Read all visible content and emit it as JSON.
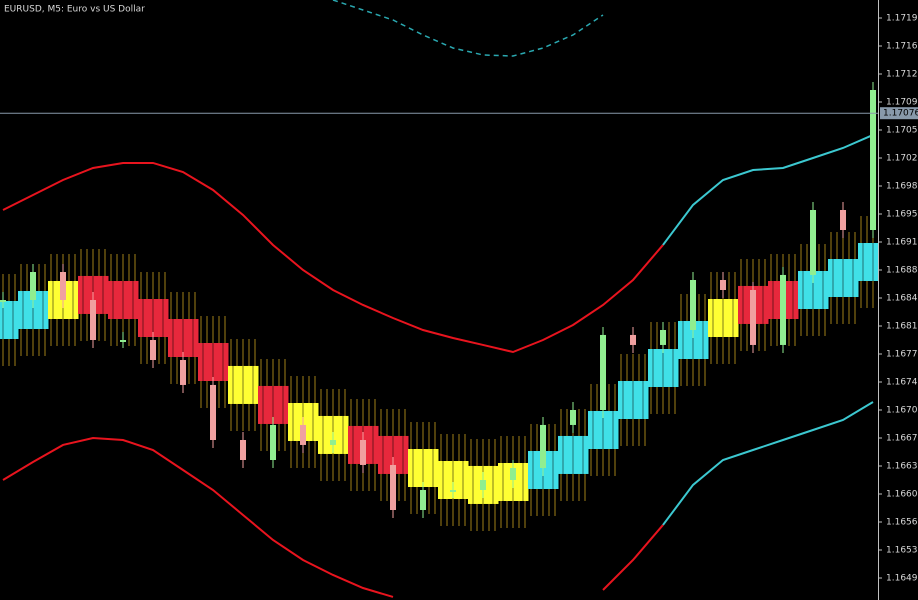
{
  "chart_data": {
    "type": "line",
    "title": "EURUSD, M5:  Euro vs US Dollar",
    "categories": [
      null,
      null,
      null,
      null,
      null,
      null,
      null,
      null,
      null,
      null,
      null,
      null,
      null,
      null,
      null,
      null,
      null,
      null,
      null,
      null,
      null,
      null,
      null,
      null,
      null,
      null,
      null,
      null,
      null,
      null
    ],
    "ylim": [
      1.164675,
      1.172175
    ],
    "yticks": [
      {
        "value": 1.17195,
        "label": "1.17195"
      },
      {
        "value": 1.1716,
        "label": "1.17160"
      },
      {
        "value": 1.17125,
        "label": "1.17125"
      },
      {
        "value": 1.1709,
        "label": "1.17090"
      },
      {
        "value": 1.17055,
        "label": "1.17055"
      },
      {
        "value": 1.1702,
        "label": "1.17020"
      },
      {
        "value": 1.16985,
        "label": "1.16985"
      },
      {
        "value": 1.1695,
        "label": "1.16950"
      },
      {
        "value": 1.16915,
        "label": "1.16915"
      },
      {
        "value": 1.1688,
        "label": "1.16880"
      },
      {
        "value": 1.16845,
        "label": "1.16845"
      },
      {
        "value": 1.1681,
        "label": "1.16810"
      },
      {
        "value": 1.16775,
        "label": "1.16775"
      },
      {
        "value": 1.1674,
        "label": "1.16740"
      },
      {
        "value": 1.16705,
        "label": "1.16705"
      },
      {
        "value": 1.1667,
        "label": "1.16670"
      },
      {
        "value": 1.16635,
        "label": "1.16635"
      },
      {
        "value": 1.166,
        "label": "1.16600"
      },
      {
        "value": 1.16565,
        "label": "1.16565"
      },
      {
        "value": 1.1653,
        "label": "1.16530"
      },
      {
        "value": 1.16495,
        "label": "1.16495"
      }
    ],
    "price_line": {
      "value": 1.17076,
      "label": "1.17076",
      "color": "#8899aa"
    },
    "series": [
      {
        "style": "line",
        "color": "#e8141e",
        "values": [
          1.16955,
          1.169738,
          1.169925,
          1.170075,
          1.170138,
          1.170138,
          1.170025,
          1.1698,
          1.169488,
          1.169113,
          1.1688,
          1.16855,
          1.168363,
          1.1682,
          1.16805,
          1.16795,
          1.167863,
          1.167775,
          1.167925,
          1.168113,
          1.168363,
          1.168675,
          1.169113,
          null,
          null,
          null,
          null,
          null,
          null,
          null
        ]
      },
      {
        "style": "line",
        "color": "#3cc8d0",
        "values": [
          null,
          null,
          null,
          null,
          null,
          null,
          null,
          null,
          null,
          null,
          null,
          null,
          null,
          null,
          null,
          null,
          null,
          null,
          null,
          null,
          null,
          null,
          1.169113,
          1.169613,
          1.169925,
          1.17005,
          1.170075,
          1.1702,
          1.170325,
          1.170488
        ]
      },
      {
        "style": "line",
        "color": "#e8141e",
        "values": [
          1.166175,
          1.1664,
          1.166613,
          1.1667,
          1.166675,
          1.16655,
          1.1663,
          1.16605,
          1.165738,
          1.165425,
          1.165175,
          1.164988,
          1.164825,
          1.164713,
          null,
          null,
          null,
          null,
          null,
          null,
          1.1648,
          1.165175,
          1.165613,
          null,
          null,
          null,
          null,
          null,
          null,
          null
        ]
      },
      {
        "style": "line",
        "color": "#3cc8d0",
        "values": [
          null,
          null,
          null,
          null,
          null,
          null,
          null,
          null,
          null,
          null,
          null,
          null,
          null,
          null,
          null,
          null,
          null,
          null,
          null,
          null,
          null,
          null,
          1.165613,
          1.166113,
          1.166425,
          1.16655,
          1.166675,
          1.1668,
          1.166925,
          1.16715
        ]
      },
      {
        "style": "dashed",
        "color": "#2aa8b0",
        "values": [
          null,
          null,
          null,
          null,
          null,
          null,
          null,
          null,
          null,
          null,
          null,
          1.172175,
          1.17205,
          1.171925,
          1.171738,
          1.171575,
          1.171488,
          1.171475,
          1.171575,
          1.171738,
          1.171988,
          null,
          null,
          null,
          null,
          null,
          null,
          null,
          null,
          null
        ]
      },
      {
        "style": "ribbon",
        "color": "#c8a020",
        "colors": [
          "#40e0e8",
          "#40e0e8",
          "#ffff33",
          "#e8283c",
          "#e8283c",
          "#e8283c",
          "#e8283c",
          "#e8283c",
          "#ffff33",
          "#e8283c",
          "#ffff33",
          "#ffff33",
          "#e8283c",
          "#e8283c",
          "#ffff33",
          "#ffff33",
          "#ffff33",
          "#ffff33",
          "#40e0e8",
          "#40e0e8",
          "#40e0e8",
          "#40e0e8",
          "#40e0e8",
          "#40e0e8",
          "#ffff33",
          "#e8283c",
          "#e8283c",
          "#40e0e8",
          "#40e0e8",
          "#40e0e8"
        ],
        "values": [
          1.168175,
          1.1683,
          1.168425,
          1.168488,
          1.168425,
          1.1682,
          1.16795,
          1.16765,
          1.167363,
          1.167113,
          1.1669,
          1.166738,
          1.166613,
          1.166488,
          1.166325,
          1.166175,
          1.166113,
          1.16615,
          1.1663,
          1.166488,
          1.1668,
          1.167175,
          1.167575,
          1.167925,
          1.1682,
          1.168363,
          1.168425,
          1.16855,
          1.1687,
          1.1689
        ]
      },
      {
        "style": "bars",
        "color": "#90ee90",
        "down_color": "#f0a0a0",
        "values": [
          1.168425,
          1.168775,
          1.168425,
          1.167925,
          1.167925,
          1.167675,
          1.167363,
          1.166675,
          1.166425,
          1.166863,
          1.166613,
          1.166675,
          1.166363,
          1.1658,
          1.16605,
          1.16605,
          1.166175,
          1.166325,
          1.166863,
          1.16705,
          1.167988,
          1.167863,
          1.16805,
          1.168675,
          1.16855,
          1.167863,
          1.168738,
          1.16955,
          1.1693,
          1.17105
        ]
      }
    ]
  }
}
